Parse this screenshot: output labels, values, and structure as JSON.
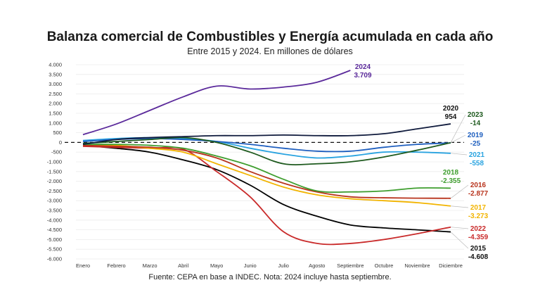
{
  "chart_data": {
    "type": "line",
    "title": "Balanza comercial de Combustibles y Energía acumulada en cada año",
    "subtitle": "Entre 2015 y 2024. En millones de dólares",
    "source": "Fuente: CEPA en base a INDEC. Nota: 2024 incluye hasta septiembre.",
    "xlabel": "",
    "ylabel": "",
    "categories": [
      "Enero",
      "Febrero",
      "Marzo",
      "Abril",
      "Mayo",
      "Junio",
      "Julio",
      "Agosto",
      "Septiembre",
      "Octubre",
      "Noviembre",
      "Diciembre"
    ],
    "ylim": [
      -6000,
      4000
    ],
    "yticks": [
      4000,
      3500,
      3000,
      2500,
      2000,
      1500,
      1000,
      500,
      0,
      -500,
      -1000,
      -1500,
      -2000,
      -2500,
      -3000,
      -3500,
      -4000,
      -4500,
      -5000,
      -5500,
      -6000
    ],
    "ytick_labels": [
      "4.000",
      "3.500",
      "3.000",
      "2.500",
      "2.000",
      "1.500",
      "1.000",
      "500",
      "0",
      "-500",
      "-1.000",
      "-1.500",
      "-2.000",
      "-2.500",
      "-3.000",
      "-3.500",
      "-4.000",
      "-4.500",
      "-5.000",
      "-5.500",
      "-6.000"
    ],
    "grid": true,
    "zero_line": "dashed",
    "series": [
      {
        "name": "2024",
        "color": "#5b2a9b",
        "values": [
          400,
          950,
          1650,
          2350,
          2900,
          2750,
          2850,
          3100,
          3709
        ],
        "label_value": "3.709"
      },
      {
        "name": "2020",
        "color": "#0f1a3c",
        "values": [
          -100,
          150,
          250,
          300,
          350,
          350,
          380,
          350,
          350,
          450,
          700,
          954
        ],
        "label_value": "954"
      },
      {
        "name": "2023",
        "color": "#1e5a1e",
        "values": [
          -50,
          50,
          150,
          250,
          0,
          -500,
          -1100,
          -1100,
          -1000,
          -750,
          -400,
          -14
        ],
        "label_value": "-14"
      },
      {
        "name": "2019",
        "color": "#1f5fbf",
        "values": [
          50,
          150,
          200,
          150,
          50,
          -100,
          -300,
          -450,
          -450,
          -250,
          -100,
          -25
        ],
        "label_value": "-25"
      },
      {
        "name": "2021",
        "color": "#29a3e0",
        "values": [
          100,
          200,
          250,
          200,
          50,
          -300,
          -600,
          -800,
          -700,
          -500,
          -500,
          -558
        ],
        "label_value": "-558"
      },
      {
        "name": "2018",
        "color": "#3f9e2f",
        "values": [
          -100,
          -100,
          -150,
          -300,
          -700,
          -1200,
          -1900,
          -2500,
          -2550,
          -2500,
          -2350,
          -2355
        ],
        "label_value": "-2.355"
      },
      {
        "name": "2016",
        "color": "#b8341d",
        "values": [
          -150,
          -200,
          -250,
          -400,
          -800,
          -1500,
          -2100,
          -2550,
          -2800,
          -2850,
          -2870,
          -2877
        ],
        "label_value": "-2.877"
      },
      {
        "name": "2017",
        "color": "#f2b400",
        "values": [
          -100,
          -150,
          -300,
          -500,
          -1100,
          -1700,
          -2300,
          -2700,
          -2900,
          -3000,
          -3100,
          -3273
        ],
        "label_value": "-3.273"
      },
      {
        "name": "2022",
        "color": "#c92a2a",
        "values": [
          -200,
          -250,
          -300,
          -350,
          -1500,
          -2800,
          -4600,
          -5200,
          -5200,
          -5000,
          -4700,
          -4359
        ],
        "label_value": "-4.359"
      },
      {
        "name": "2015",
        "color": "#000000",
        "values": [
          -150,
          -300,
          -500,
          -900,
          -1400,
          -2200,
          -3200,
          -3800,
          -4250,
          -4400,
          -4500,
          -4608
        ],
        "label_value": "-4.608"
      }
    ],
    "legend": "direct-labels-right"
  }
}
